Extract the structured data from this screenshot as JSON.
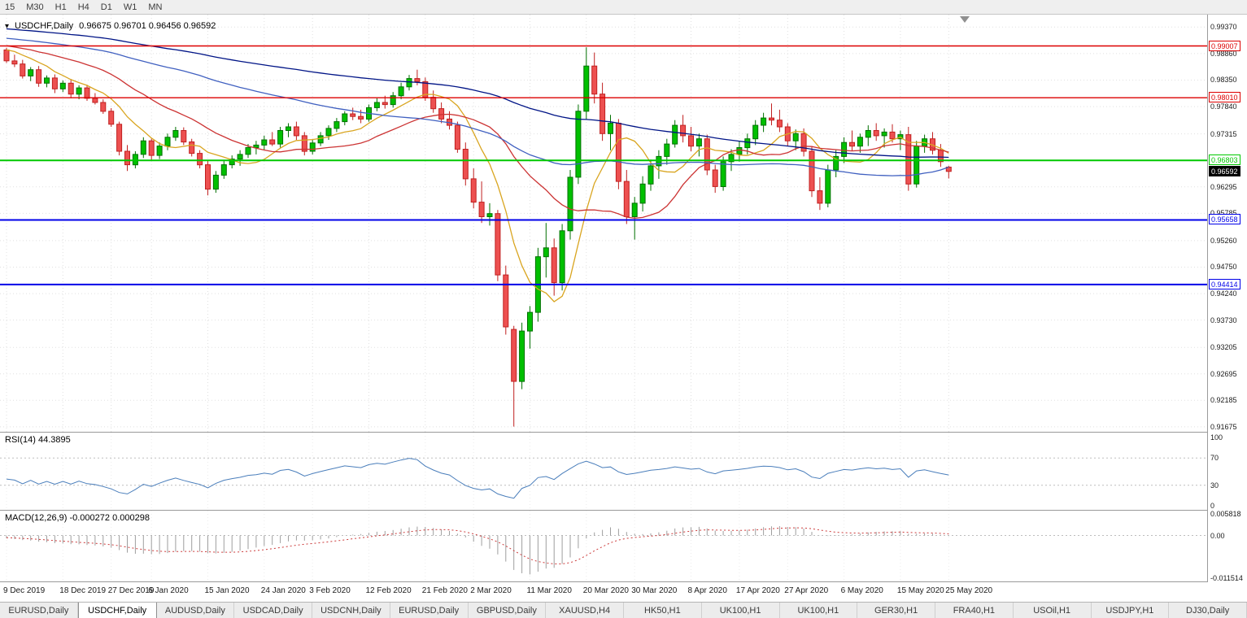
{
  "toolbar": {
    "timeframes": [
      "15",
      "M30",
      "H1",
      "H4",
      "D1",
      "W1",
      "MN"
    ]
  },
  "tabs": {
    "active_index": 1,
    "items": [
      "EURUSD,Daily",
      "USDCHF,Daily",
      "AUDUSD,Daily",
      "USDCAD,Daily",
      "USDCNH,Daily",
      "EURUSD,Daily",
      "GBPUSD,Daily",
      "XAUUSD,H4",
      "HK50,H1",
      "UK100,H1",
      "UK100,H1",
      "GER30,H1",
      "FRA40,H1",
      "USOil,H1",
      "USDJPY,H1",
      "DJ30,Daily"
    ]
  },
  "chart_data": {
    "type": "candlestick",
    "title": {
      "symbol": "USDCHF,Daily",
      "ohlc": "0.96675 0.96701 0.96456 0.96592"
    },
    "colors": {
      "bull": "#00C000",
      "bull_border": "#007000",
      "bear": "#ED5050",
      "bear_border": "#C02020",
      "grid": "#e0e0e0"
    },
    "y_axis": {
      "ticks": [
        "0.99370",
        "0.98860",
        "0.98350",
        "0.97840",
        "0.97315",
        "0.96295",
        "0.95785",
        "0.95260",
        "0.94750",
        "0.94240",
        "0.93730",
        "0.93205",
        "0.92695",
        "0.92185",
        "0.91675"
      ]
    },
    "hlines": [
      {
        "price": 0.99007,
        "label": "0.99007",
        "color": "#DD0000",
        "width": 1.4
      },
      {
        "price": 0.9801,
        "label": "0.98010",
        "color": "#DD0000",
        "width": 1.4
      },
      {
        "price": 0.96803,
        "label": "0.96803",
        "color": "#00C800",
        "width": 2
      },
      {
        "price": 0.95658,
        "label": "0.95658",
        "color": "#0000E8",
        "width": 2
      },
      {
        "price": 0.94414,
        "label": "0.94414",
        "color": "#0000E8",
        "width": 2
      }
    ],
    "current_price": {
      "value": 0.96592,
      "label": "0.96592"
    },
    "moving_averages": [
      {
        "period": 8,
        "color": "#D9A520"
      },
      {
        "period": 21,
        "color": "#CC3333"
      },
      {
        "period": 55,
        "color": "#4060C0"
      },
      {
        "period": 100,
        "color": "#001486"
      }
    ],
    "x_labels": [
      {
        "label": "9 Dec 2019",
        "i": 0
      },
      {
        "label": "18 Dec 2019",
        "i": 7
      },
      {
        "label": "27 Dec 2019",
        "i": 13
      },
      {
        "label": "6 Jan 2020",
        "i": 18
      },
      {
        "label": "15 Jan 2020",
        "i": 25
      },
      {
        "label": "24 Jan 2020",
        "i": 32
      },
      {
        "label": "3 Feb 2020",
        "i": 38
      },
      {
        "label": "12 Feb 2020",
        "i": 45
      },
      {
        "label": "21 Feb 2020",
        "i": 52
      },
      {
        "label": "2 Mar 2020",
        "i": 58
      },
      {
        "label": "11 Mar 2020",
        "i": 65
      },
      {
        "label": "20 Mar 2020",
        "i": 72
      },
      {
        "label": "30 Mar 2020",
        "i": 78
      },
      {
        "label": "8 Apr 2020",
        "i": 85
      },
      {
        "label": "17 Apr 2020",
        "i": 91
      },
      {
        "label": "27 Apr 2020",
        "i": 97
      },
      {
        "label": "6 May 2020",
        "i": 104
      },
      {
        "label": "15 May 2020",
        "i": 111
      },
      {
        "label": "25 May 2020",
        "i": 117
      }
    ],
    "candles": [
      [
        0.9893,
        0.9897,
        0.9868,
        0.9872
      ],
      [
        0.9872,
        0.9884,
        0.986,
        0.9866
      ],
      [
        0.9866,
        0.9874,
        0.9838,
        0.9843
      ],
      [
        0.9843,
        0.986,
        0.9833,
        0.9855
      ],
      [
        0.9855,
        0.9862,
        0.9822,
        0.9829
      ],
      [
        0.9829,
        0.9844,
        0.9821,
        0.9839
      ],
      [
        0.9839,
        0.9846,
        0.981,
        0.9818
      ],
      [
        0.9818,
        0.9834,
        0.9812,
        0.9829
      ],
      [
        0.9829,
        0.9837,
        0.98,
        0.9808
      ],
      [
        0.9808,
        0.9825,
        0.9798,
        0.982
      ],
      [
        0.982,
        0.9826,
        0.9795,
        0.98
      ],
      [
        0.98,
        0.981,
        0.9788,
        0.9792
      ],
      [
        0.9792,
        0.9798,
        0.977,
        0.9775
      ],
      [
        0.9775,
        0.9781,
        0.9745,
        0.975
      ],
      [
        0.975,
        0.9755,
        0.969,
        0.9698
      ],
      [
        0.9698,
        0.971,
        0.966,
        0.9672
      ],
      [
        0.9672,
        0.9698,
        0.9665,
        0.9692
      ],
      [
        0.9692,
        0.9725,
        0.9685,
        0.9718
      ],
      [
        0.9718,
        0.9722,
        0.968,
        0.969
      ],
      [
        0.969,
        0.9715,
        0.9683,
        0.9708
      ],
      [
        0.9708,
        0.9732,
        0.97,
        0.9725
      ],
      [
        0.9725,
        0.9745,
        0.9718,
        0.9738
      ],
      [
        0.9738,
        0.9744,
        0.971,
        0.9716
      ],
      [
        0.9716,
        0.9722,
        0.9688,
        0.9694
      ],
      [
        0.9694,
        0.97,
        0.9665,
        0.9672
      ],
      [
        0.9672,
        0.968,
        0.9613,
        0.9625
      ],
      [
        0.9625,
        0.966,
        0.9618,
        0.9652
      ],
      [
        0.9652,
        0.968,
        0.9645,
        0.9672
      ],
      [
        0.9672,
        0.969,
        0.9665,
        0.9683
      ],
      [
        0.9683,
        0.97,
        0.967,
        0.9692
      ],
      [
        0.9692,
        0.9712,
        0.9685,
        0.9705
      ],
      [
        0.9705,
        0.9718,
        0.9692,
        0.971
      ],
      [
        0.971,
        0.9728,
        0.97,
        0.972
      ],
      [
        0.972,
        0.9735,
        0.9708,
        0.9712
      ],
      [
        0.9712,
        0.9745,
        0.9705,
        0.9738
      ],
      [
        0.9738,
        0.9752,
        0.9725,
        0.9745
      ],
      [
        0.9745,
        0.9755,
        0.972,
        0.9728
      ],
      [
        0.9728,
        0.9735,
        0.969,
        0.9698
      ],
      [
        0.9698,
        0.972,
        0.9692,
        0.9714
      ],
      [
        0.9714,
        0.9735,
        0.9708,
        0.9728
      ],
      [
        0.9728,
        0.9748,
        0.972,
        0.9742
      ],
      [
        0.9742,
        0.9762,
        0.9735,
        0.9755
      ],
      [
        0.9755,
        0.9775,
        0.9748,
        0.977
      ],
      [
        0.977,
        0.9782,
        0.9758,
        0.9765
      ],
      [
        0.9765,
        0.9778,
        0.9752,
        0.976
      ],
      [
        0.976,
        0.9788,
        0.9755,
        0.9782
      ],
      [
        0.9782,
        0.98,
        0.9775,
        0.9792
      ],
      [
        0.9792,
        0.9805,
        0.978,
        0.9788
      ],
      [
        0.9788,
        0.9812,
        0.9782,
        0.9805
      ],
      [
        0.9805,
        0.983,
        0.9798,
        0.9822
      ],
      [
        0.9822,
        0.9845,
        0.9815,
        0.9838
      ],
      [
        0.9838,
        0.9855,
        0.9825,
        0.9832
      ],
      [
        0.9832,
        0.984,
        0.9795,
        0.9802
      ],
      [
        0.9802,
        0.9815,
        0.9772,
        0.978
      ],
      [
        0.978,
        0.9792,
        0.9752,
        0.976
      ],
      [
        0.976,
        0.9775,
        0.974,
        0.9748
      ],
      [
        0.9748,
        0.9755,
        0.9695,
        0.9702
      ],
      [
        0.9702,
        0.9715,
        0.9632,
        0.9645
      ],
      [
        0.9645,
        0.9665,
        0.9588,
        0.96
      ],
      [
        0.96,
        0.964,
        0.956,
        0.9572
      ],
      [
        0.9572,
        0.9598,
        0.9555,
        0.9578
      ],
      [
        0.9578,
        0.9585,
        0.9448,
        0.946
      ],
      [
        0.946,
        0.9478,
        0.9345,
        0.936
      ],
      [
        0.9355,
        0.9362,
        0.9168,
        0.9255
      ],
      [
        0.9255,
        0.9368,
        0.924,
        0.9352
      ],
      [
        0.9352,
        0.94,
        0.9318,
        0.9388
      ],
      [
        0.9388,
        0.9512,
        0.937,
        0.9495
      ],
      [
        0.9495,
        0.956,
        0.9455,
        0.9512
      ],
      [
        0.9512,
        0.953,
        0.942,
        0.9445
      ],
      [
        0.9445,
        0.9558,
        0.943,
        0.9545
      ],
      [
        0.9545,
        0.9662,
        0.9528,
        0.9648
      ],
      [
        0.9648,
        0.9788,
        0.9635,
        0.9775
      ],
      [
        0.9775,
        0.9898,
        0.976,
        0.9862
      ],
      [
        0.9862,
        0.9888,
        0.979,
        0.9808
      ],
      [
        0.9808,
        0.983,
        0.9718,
        0.9732
      ],
      [
        0.9732,
        0.9768,
        0.97,
        0.9752
      ],
      [
        0.9752,
        0.976,
        0.9625,
        0.964
      ],
      [
        0.964,
        0.9662,
        0.9558,
        0.9572
      ],
      [
        0.9572,
        0.961,
        0.9528,
        0.9598
      ],
      [
        0.9598,
        0.965,
        0.9582,
        0.9635
      ],
      [
        0.9635,
        0.9682,
        0.9622,
        0.967
      ],
      [
        0.967,
        0.97,
        0.9645,
        0.9688
      ],
      [
        0.9688,
        0.9722,
        0.9672,
        0.9712
      ],
      [
        0.9712,
        0.9758,
        0.9705,
        0.9748
      ],
      [
        0.9748,
        0.9768,
        0.9715,
        0.9728
      ],
      [
        0.9728,
        0.9745,
        0.9698,
        0.9708
      ],
      [
        0.9708,
        0.9732,
        0.9688,
        0.9722
      ],
      [
        0.9722,
        0.973,
        0.9652,
        0.9662
      ],
      [
        0.9662,
        0.9672,
        0.9618,
        0.963
      ],
      [
        0.963,
        0.9688,
        0.9622,
        0.9678
      ],
      [
        0.9678,
        0.9702,
        0.966,
        0.9692
      ],
      [
        0.9692,
        0.9718,
        0.9678,
        0.9705
      ],
      [
        0.9705,
        0.9732,
        0.9692,
        0.9722
      ],
      [
        0.9722,
        0.9758,
        0.971,
        0.9748
      ],
      [
        0.9748,
        0.9772,
        0.9735,
        0.9762
      ],
      [
        0.9762,
        0.979,
        0.9748,
        0.9758
      ],
      [
        0.9758,
        0.9778,
        0.9735,
        0.9745
      ],
      [
        0.9745,
        0.9752,
        0.9708,
        0.9718
      ],
      [
        0.9718,
        0.974,
        0.97,
        0.9732
      ],
      [
        0.9732,
        0.9742,
        0.9688,
        0.9698
      ],
      [
        0.9698,
        0.9708,
        0.961,
        0.9622
      ],
      [
        0.9622,
        0.9648,
        0.9585,
        0.9598
      ],
      [
        0.9598,
        0.9672,
        0.959,
        0.9662
      ],
      [
        0.9662,
        0.97,
        0.9648,
        0.9688
      ],
      [
        0.9688,
        0.9725,
        0.9675,
        0.9715
      ],
      [
        0.9715,
        0.9738,
        0.9698,
        0.9708
      ],
      [
        0.9708,
        0.9732,
        0.9695,
        0.9725
      ],
      [
        0.9725,
        0.9748,
        0.9708,
        0.9738
      ],
      [
        0.9738,
        0.9752,
        0.9718,
        0.9728
      ],
      [
        0.9728,
        0.9742,
        0.9705,
        0.9735
      ],
      [
        0.9735,
        0.975,
        0.9715,
        0.9722
      ],
      [
        0.9722,
        0.9738,
        0.97,
        0.973
      ],
      [
        0.973,
        0.9745,
        0.9622,
        0.9635
      ],
      [
        0.9635,
        0.9718,
        0.9628,
        0.9708
      ],
      [
        0.9708,
        0.973,
        0.9695,
        0.9722
      ],
      [
        0.9722,
        0.9735,
        0.9692,
        0.97
      ],
      [
        0.97,
        0.9712,
        0.9668,
        0.9678
      ],
      [
        0.96675,
        0.96701,
        0.96456,
        0.96592
      ]
    ],
    "indicators": {
      "rsi": {
        "label": "RSI(14) 44.3895",
        "period": 14,
        "current": 44.3895,
        "levels": [
          "100",
          "70",
          "30",
          "0"
        ],
        "color": "#4A7EBB"
      },
      "macd": {
        "label": "MACD(12,26,9) -0.000272 0.000298",
        "current_main": -0.000272,
        "current_signal": 0.000298,
        "scale_labels": [
          "0.005818",
          "0.00",
          "-0.011514"
        ],
        "vmax": 0.005818,
        "vmin": -0.011514
      }
    }
  }
}
